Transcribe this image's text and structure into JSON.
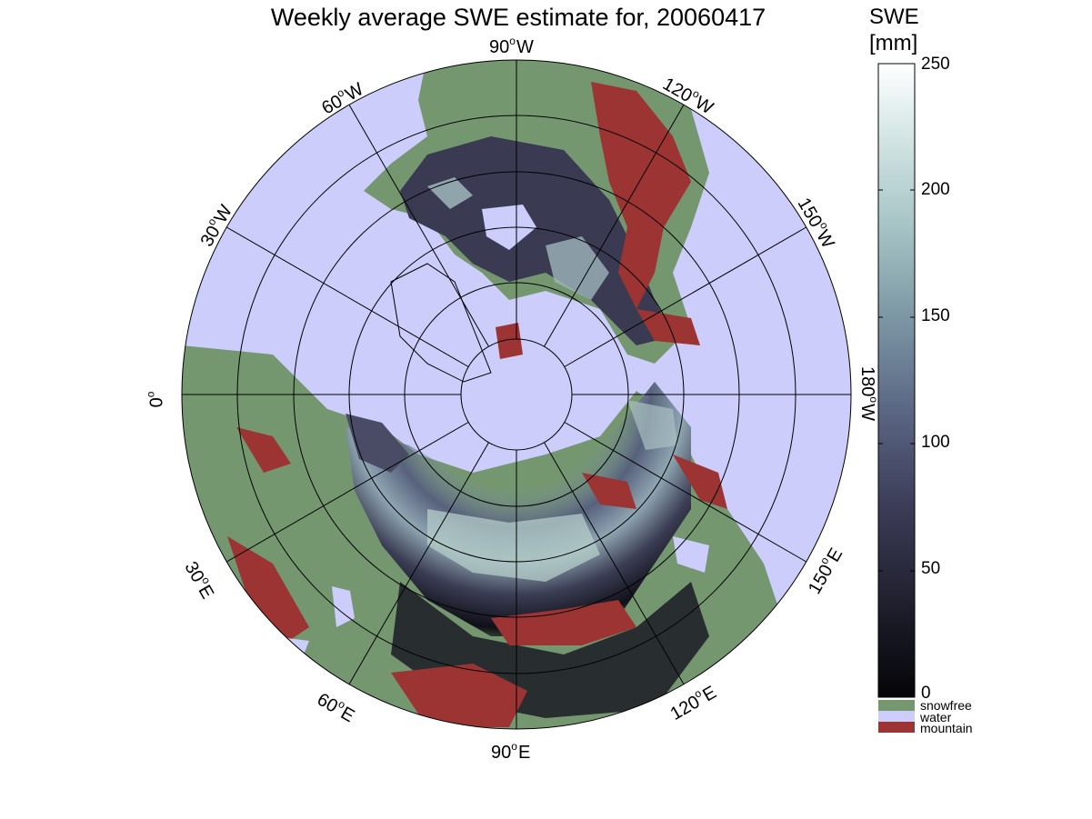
{
  "title": "Weekly average SWE estimate for, 20060417",
  "colorbar": {
    "title_line1": "SWE",
    "title_line2": "[mm]",
    "ticks": [
      "0",
      "50",
      "100",
      "150",
      "200",
      "250"
    ],
    "range": [
      0,
      250
    ],
    "categories": [
      {
        "label": "snowfree",
        "color": "#74976f"
      },
      {
        "label": "water",
        "color": "#cccdfb"
      },
      {
        "label": "mountain",
        "color": "#9b3432"
      }
    ]
  },
  "meridian_labels": [
    {
      "deg": "90",
      "dir": "W"
    },
    {
      "deg": "120",
      "dir": "W"
    },
    {
      "deg": "150",
      "dir": "W"
    },
    {
      "deg": "180",
      "dir": "W"
    },
    {
      "deg": "150",
      "dir": "E"
    },
    {
      "deg": "120",
      "dir": "E"
    },
    {
      "deg": "90",
      "dir": "E"
    },
    {
      "deg": "60",
      "dir": "E"
    },
    {
      "deg": "30",
      "dir": "E"
    },
    {
      "deg": "0",
      "dir": ""
    },
    {
      "deg": "30",
      "dir": "W"
    },
    {
      "deg": "60",
      "dir": "W"
    }
  ],
  "map_colors": {
    "water": "#cccdfb",
    "land": "#74976f",
    "mountain": "#9b3432",
    "snow_low": "#08080c",
    "snow_high": "#ffffff"
  }
}
